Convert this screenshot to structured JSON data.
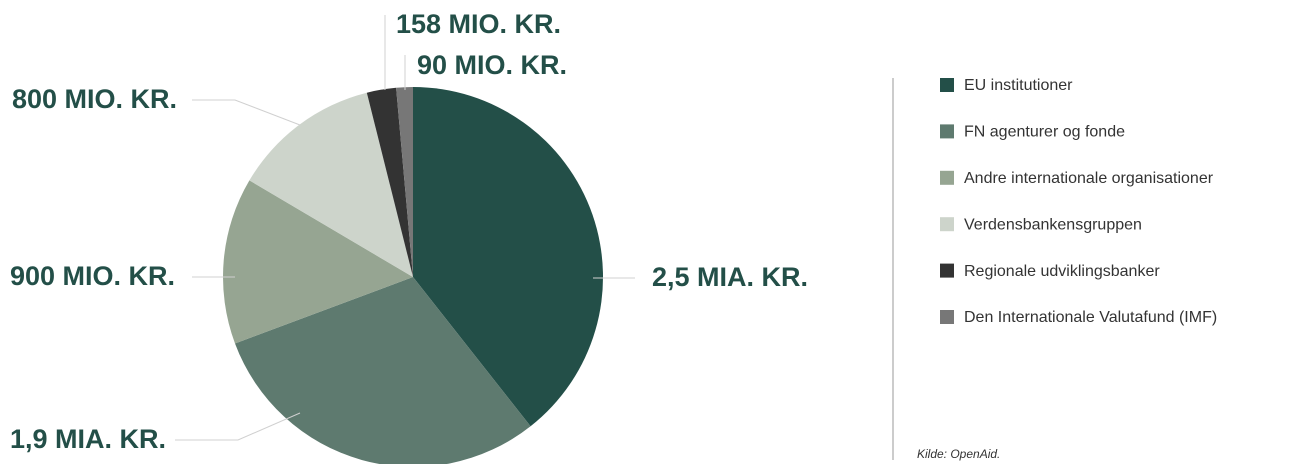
{
  "chart_data": {
    "type": "pie",
    "categories": [
      "EU institutioner",
      "FN agenturer og fonde",
      "Andre internationale organisationer",
      "Verdensbankensgruppen",
      "Regionale udviklingsbanker",
      "Den Internationale Valutafund (IMF)"
    ],
    "values": [
      2500,
      1900,
      900,
      800,
      158,
      90
    ],
    "value_labels": [
      "2,5 MIA. KR.",
      "1,9 MIA. KR.",
      "900 MIO. KR.",
      "800 MIO. KR.",
      "158 MIO. KR.",
      "90 MIO. KR."
    ],
    "colors": [
      "#234f48",
      "#5e7a6f",
      "#96a592",
      "#cdd4cb",
      "#333333",
      "#777777"
    ],
    "source": "Kilde: OpenAid."
  }
}
